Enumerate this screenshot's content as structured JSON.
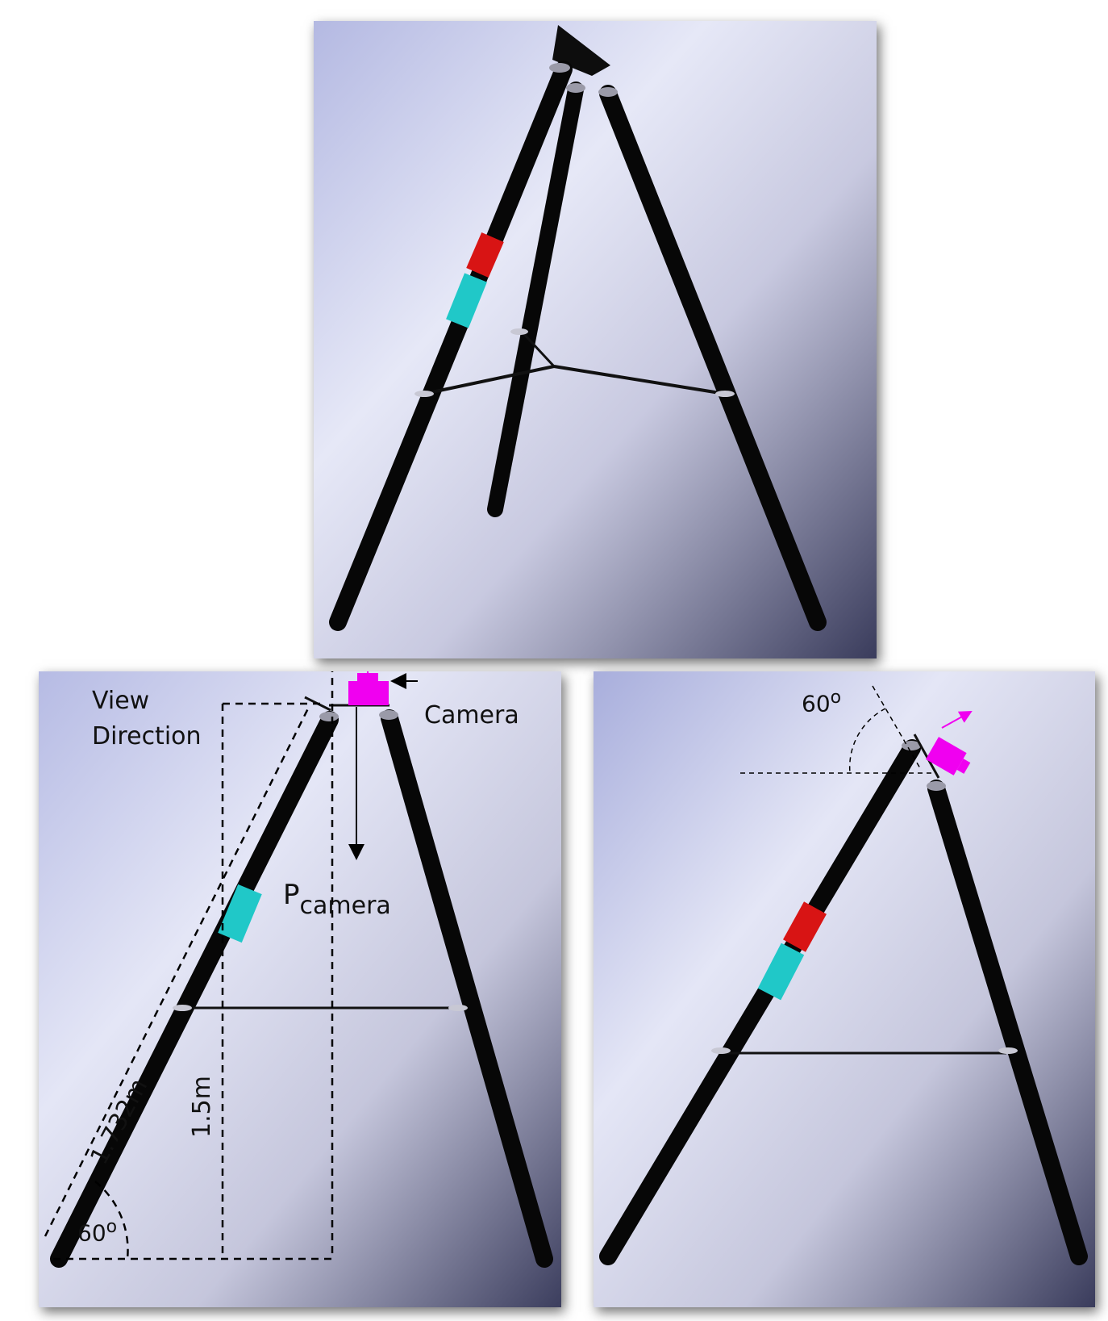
{
  "colors": {
    "bg_top": "#b9bee6",
    "bg_mid": "#e4e6f6",
    "bg_bottom": "#3d3f5e",
    "leg": "#070707",
    "red_sleeve": "#d81414",
    "cyan_sleeve": "#20c8c8",
    "camera": "#f000f0"
  },
  "labels": {
    "view_direction_line1": "View",
    "view_direction_line2": "Direction",
    "camera": "Camera",
    "p_camera_main": "P",
    "p_camera_sub": "camera",
    "leg_length": "1.732m",
    "height": "1.5m",
    "angle_left_num": "60",
    "angle_left_deg": "o",
    "angle_right_num": "60",
    "angle_right_deg": "o"
  }
}
